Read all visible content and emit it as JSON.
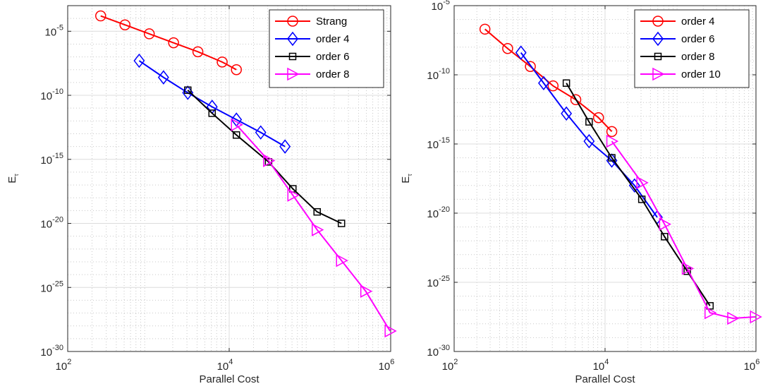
{
  "chart_data": [
    {
      "type": "line",
      "xscale": "log",
      "yscale": "log",
      "xlabel": "Parallel Cost",
      "ylabel": "E",
      "ylabel_subscript": "τ",
      "xlim": [
        100,
        1000000
      ],
      "ylim_exp": [
        -30,
        -3
      ],
      "x_ticks": [
        {
          "base": "10",
          "exp": "2",
          "value": 100
        },
        {
          "base": "10",
          "exp": "4",
          "value": 10000
        },
        {
          "base": "10",
          "exp": "6",
          "value": 1000000
        }
      ],
      "y_ticks": [
        {
          "base": "10",
          "exp": "-5",
          "value": -5
        },
        {
          "base": "10",
          "exp": "-10",
          "value": -10
        },
        {
          "base": "10",
          "exp": "-15",
          "value": -15
        },
        {
          "base": "10",
          "exp": "-20",
          "value": -20
        },
        {
          "base": "10",
          "exp": "-25",
          "value": -25
        },
        {
          "base": "10",
          "exp": "-30",
          "value": -30
        }
      ],
      "grid": true,
      "legend_position": "top-right",
      "series": [
        {
          "name": "Strang",
          "color": "#ff0000",
          "marker": "circle",
          "x": [
            256,
            512,
            1024,
            2048,
            4096,
            8192,
            12288
          ],
          "y_exp": [
            -3.8,
            -4.5,
            -5.2,
            -5.9,
            -6.6,
            -7.4,
            -8.0
          ]
        },
        {
          "name": "order 4",
          "color": "#0000ff",
          "marker": "diamond",
          "x": [
            768,
            1536,
            3072,
            6144,
            12288,
            24576,
            49152
          ],
          "y_exp": [
            -7.3,
            -8.6,
            -9.8,
            -10.9,
            -11.9,
            -12.9,
            -14.0
          ]
        },
        {
          "name": "order 6",
          "color": "#000000",
          "marker": "square",
          "x": [
            3072,
            6144,
            12288,
            30720,
            61440,
            122880,
            245760
          ],
          "y_exp": [
            -9.6,
            -11.4,
            -13.1,
            -15.2,
            -17.3,
            -19.1,
            -20.0
          ]
        },
        {
          "name": "order 8",
          "color": "#ff00ff",
          "marker": "triangle-right",
          "x": [
            12288,
            30720,
            61440,
            122880,
            245760,
            491520,
            983040
          ],
          "y_exp": [
            -12.3,
            -15.1,
            -17.8,
            -20.5,
            -22.9,
            -25.3,
            -28.4
          ]
        }
      ]
    },
    {
      "type": "line",
      "xscale": "log",
      "yscale": "log",
      "xlabel": "Parallel Cost",
      "ylabel": "E",
      "ylabel_subscript": "τ",
      "xlim": [
        100,
        1000000
      ],
      "ylim_exp": [
        -30,
        -5
      ],
      "x_ticks": [
        {
          "base": "10",
          "exp": "2",
          "value": 100
        },
        {
          "base": "10",
          "exp": "4",
          "value": 10000
        },
        {
          "base": "10",
          "exp": "6",
          "value": 1000000
        }
      ],
      "y_ticks": [
        {
          "base": "10",
          "exp": "-5",
          "value": -5
        },
        {
          "base": "10",
          "exp": "-10",
          "value": -10
        },
        {
          "base": "10",
          "exp": "-15",
          "value": -15
        },
        {
          "base": "10",
          "exp": "-20",
          "value": -20
        },
        {
          "base": "10",
          "exp": "-25",
          "value": -25
        },
        {
          "base": "10",
          "exp": "-30",
          "value": -30
        }
      ],
      "grid": true,
      "legend_position": "top-right",
      "series": [
        {
          "name": "order 4",
          "color": "#ff0000",
          "marker": "circle",
          "x": [
            256,
            512,
            1024,
            2048,
            4096,
            8192,
            12288
          ],
          "y_exp": [
            -6.7,
            -8.1,
            -9.4,
            -10.8,
            -11.8,
            -13.1,
            -14.1
          ]
        },
        {
          "name": "order 6",
          "color": "#0000ff",
          "marker": "diamond",
          "x": [
            768,
            1536,
            3072,
            6144,
            12288,
            24576,
            49152
          ],
          "y_exp": [
            -8.4,
            -10.6,
            -12.8,
            -14.8,
            -16.2,
            -18.0,
            -20.3
          ]
        },
        {
          "name": "order 8",
          "color": "#000000",
          "marker": "square",
          "x": [
            3072,
            6144,
            12288,
            30720,
            61440,
            122880,
            245760
          ],
          "y_exp": [
            -10.6,
            -13.4,
            -16.0,
            -19.0,
            -21.7,
            -24.2,
            -26.7
          ]
        },
        {
          "name": "order 10",
          "color": "#ff00ff",
          "marker": "triangle-right",
          "x": [
            12288,
            30720,
            61440,
            122880,
            245760,
            491520,
            983040
          ],
          "y_exp": [
            -14.8,
            -17.8,
            -20.8,
            -24.0,
            -27.2,
            -27.6,
            -27.5
          ]
        }
      ]
    }
  ]
}
